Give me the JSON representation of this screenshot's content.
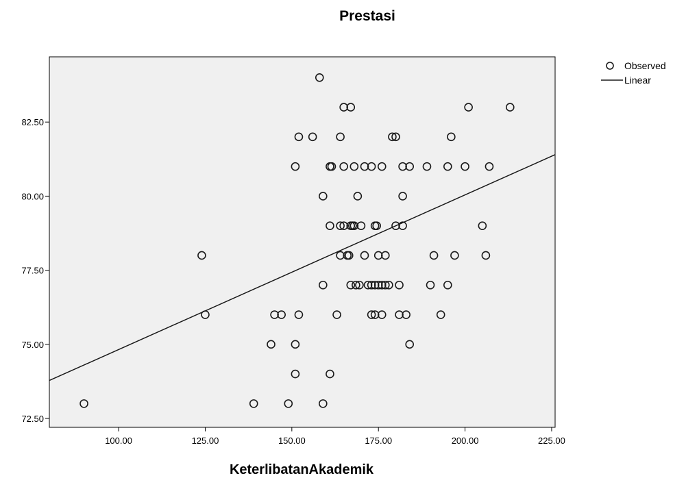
{
  "chart_data": {
    "type": "scatter",
    "title": "Prestasi",
    "xlabel": "KeterlibatanAkademik",
    "ylabel": "",
    "xlim": [
      80,
      226
    ],
    "ylim": [
      72.2,
      84.7
    ],
    "xticks": [
      100,
      125,
      150,
      175,
      200,
      225
    ],
    "yticks": [
      72.5,
      75,
      77.5,
      80,
      82.5
    ],
    "xtick_labels": [
      "100.00",
      "125.00",
      "150.00",
      "175.00",
      "200.00",
      "225.00"
    ],
    "ytick_labels": [
      "72.50",
      "75.00",
      "77.50",
      "80.00",
      "82.50"
    ],
    "grid": false,
    "legend_position": "top-right",
    "plot_background": "#f0f0f0",
    "legend": {
      "observed": "Observed",
      "linear": "Linear"
    },
    "series": [
      {
        "name": "Observed",
        "marker": "open-circle",
        "points": [
          [
            158,
            84
          ],
          [
            165,
            83
          ],
          [
            167,
            83
          ],
          [
            201,
            83
          ],
          [
            213,
            83
          ],
          [
            152,
            82
          ],
          [
            156,
            82
          ],
          [
            164,
            82
          ],
          [
            179,
            82
          ],
          [
            180,
            82
          ],
          [
            196,
            82
          ],
          [
            151,
            81
          ],
          [
            161,
            81
          ],
          [
            161.5,
            81
          ],
          [
            165,
            81
          ],
          [
            168,
            81
          ],
          [
            171,
            81
          ],
          [
            173,
            81
          ],
          [
            176,
            81
          ],
          [
            182,
            81
          ],
          [
            184,
            81
          ],
          [
            189,
            81
          ],
          [
            195,
            81
          ],
          [
            200,
            81
          ],
          [
            207,
            81
          ],
          [
            159,
            80
          ],
          [
            169,
            80
          ],
          [
            182,
            80
          ],
          [
            161,
            79
          ],
          [
            164,
            79
          ],
          [
            165,
            79
          ],
          [
            167,
            79
          ],
          [
            167.5,
            79
          ],
          [
            168,
            79
          ],
          [
            170,
            79
          ],
          [
            174,
            79
          ],
          [
            174.5,
            79
          ],
          [
            180,
            79
          ],
          [
            182,
            79
          ],
          [
            205,
            79
          ],
          [
            124,
            78
          ],
          [
            164,
            78
          ],
          [
            166,
            78
          ],
          [
            166.5,
            78
          ],
          [
            171,
            78
          ],
          [
            175,
            78
          ],
          [
            177,
            78
          ],
          [
            191,
            78
          ],
          [
            197,
            78
          ],
          [
            206,
            78
          ],
          [
            159,
            77
          ],
          [
            167,
            77
          ],
          [
            168.5,
            77
          ],
          [
            169.5,
            77
          ],
          [
            172,
            77
          ],
          [
            173,
            77
          ],
          [
            174,
            77
          ],
          [
            175,
            77
          ],
          [
            176,
            77
          ],
          [
            177,
            77
          ],
          [
            178,
            77
          ],
          [
            181,
            77
          ],
          [
            190,
            77
          ],
          [
            195,
            77
          ],
          [
            125,
            76
          ],
          [
            145,
            76
          ],
          [
            147,
            76
          ],
          [
            152,
            76
          ],
          [
            163,
            76
          ],
          [
            173,
            76
          ],
          [
            174,
            76
          ],
          [
            176,
            76
          ],
          [
            181,
            76
          ],
          [
            183,
            76
          ],
          [
            193,
            76
          ],
          [
            144,
            75
          ],
          [
            151,
            75
          ],
          [
            184,
            75
          ],
          [
            151,
            74
          ],
          [
            161,
            74
          ],
          [
            90,
            73
          ],
          [
            139,
            73
          ],
          [
            149,
            73
          ],
          [
            159,
            73
          ]
        ]
      },
      {
        "name": "Linear",
        "line": [
          [
            80,
            73.78
          ],
          [
            226,
            81.4
          ]
        ]
      }
    ]
  },
  "colors": {
    "marker": "#1a1a1a",
    "line": "#1a1a1a",
    "frame": "#000000",
    "plot_bg": "#f0f0f0"
  }
}
